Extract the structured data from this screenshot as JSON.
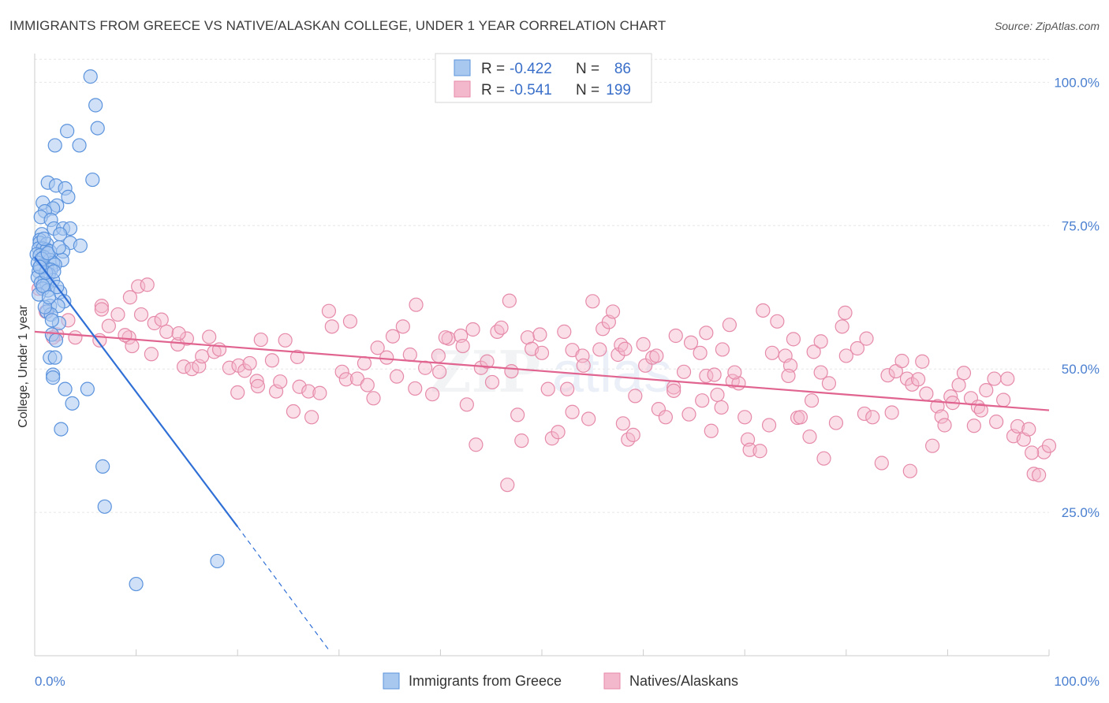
{
  "title": "IMMIGRANTS FROM GREECE VS NATIVE/ALASKAN COLLEGE, UNDER 1 YEAR CORRELATION CHART",
  "source": "Source: ZipAtlas.com",
  "watermark": "ZIPatlas",
  "colors": {
    "blue_fill": "#a9c8f0",
    "blue_stroke": "#5b93dd",
    "blue_line": "#2f6fd6",
    "pink_fill": "#f4b8cc",
    "pink_stroke": "#e68aa9",
    "pink_line": "#e0648f"
  },
  "legend_top": {
    "rows": [
      {
        "r_label": "R =",
        "r_value": "-0.422",
        "n_label": "N =",
        "n_value": "86"
      },
      {
        "r_label": "R =",
        "r_value": "-0.541",
        "n_label": "N =",
        "n_value": "199"
      }
    ]
  },
  "legend_bottom": {
    "items": [
      {
        "label": "Immigrants from Greece"
      },
      {
        "label": "Natives/Alaskans"
      }
    ]
  },
  "chart_data": {
    "type": "scatter",
    "title": "IMMIGRANTS FROM GREECE VS NATIVE/ALASKAN COLLEGE, UNDER 1 YEAR CORRELATION CHART",
    "xlabel": "",
    "ylabel": "College, Under 1 year",
    "xlim": [
      0,
      100
    ],
    "ylim": [
      0,
      105
    ],
    "x_tick_labels": [
      "0.0%",
      "100.0%"
    ],
    "y_ticks": [
      25,
      50,
      75,
      100
    ],
    "y_tick_labels": [
      "25.0%",
      "50.0%",
      "75.0%",
      "100.0%"
    ],
    "grid": true,
    "legend_position": "top-center",
    "series": [
      {
        "name": "Immigrants from Greece",
        "r": -0.422,
        "n": 86,
        "trend": {
          "x": [
            0,
            20
          ],
          "y": [
            69.5,
            22.5
          ],
          "dashed_to": [
            29,
            1
          ]
        },
        "points": [
          [
            5.5,
            101
          ],
          [
            6,
            96
          ],
          [
            6.2,
            92
          ],
          [
            3.2,
            91.5
          ],
          [
            2,
            89
          ],
          [
            4.4,
            89
          ],
          [
            5.7,
            83
          ],
          [
            1.3,
            82.5
          ],
          [
            2.1,
            82
          ],
          [
            3,
            81.5
          ],
          [
            3.3,
            80
          ],
          [
            0.8,
            79
          ],
          [
            2.2,
            78.5
          ],
          [
            1.8,
            78
          ],
          [
            1,
            77.5
          ],
          [
            0.6,
            76.5
          ],
          [
            1.6,
            76
          ],
          [
            1.9,
            74.5
          ],
          [
            2.8,
            74.5
          ],
          [
            3.5,
            74.5
          ],
          [
            0.7,
            73.5
          ],
          [
            2.5,
            73.5
          ],
          [
            0.5,
            72.5
          ],
          [
            0.5,
            72
          ],
          [
            1.2,
            71.8
          ],
          [
            3.5,
            72
          ],
          [
            4.5,
            71.5
          ],
          [
            0.4,
            71
          ],
          [
            0.8,
            71
          ],
          [
            1.2,
            70.8
          ],
          [
            1.5,
            70.5
          ],
          [
            2.8,
            70.5
          ],
          [
            0.2,
            70
          ],
          [
            0.5,
            69.8
          ],
          [
            0.9,
            69.5
          ],
          [
            1.5,
            69
          ],
          [
            2.7,
            69
          ],
          [
            0.3,
            68.5
          ],
          [
            1.8,
            68.5
          ],
          [
            2,
            68.2
          ],
          [
            0.6,
            68
          ],
          [
            1.2,
            67.5
          ],
          [
            1.6,
            67.3
          ],
          [
            0.4,
            67
          ],
          [
            1.4,
            66.5
          ],
          [
            0.3,
            66
          ],
          [
            1,
            65.5
          ],
          [
            1.8,
            65.5
          ],
          [
            0.6,
            65
          ],
          [
            1.2,
            64.8
          ],
          [
            0.8,
            64
          ],
          [
            1.3,
            63.7
          ],
          [
            2.5,
            63.4
          ],
          [
            0.4,
            63
          ],
          [
            2.9,
            61.8
          ],
          [
            1.5,
            61
          ],
          [
            2.3,
            61
          ],
          [
            1.2,
            60
          ],
          [
            1.6,
            59.5
          ],
          [
            2.4,
            58
          ],
          [
            1.7,
            56
          ],
          [
            1.5,
            52
          ],
          [
            2,
            52
          ],
          [
            1.8,
            49
          ],
          [
            1.8,
            48.5
          ],
          [
            3,
            46.5
          ],
          [
            5.2,
            46.5
          ],
          [
            3.7,
            44
          ],
          [
            2.6,
            39.5
          ],
          [
            6.7,
            33
          ],
          [
            6.9,
            26
          ],
          [
            18,
            16.5
          ],
          [
            10,
            12.5
          ],
          [
            0.8,
            64.5
          ],
          [
            1.1,
            66.8
          ],
          [
            0.7,
            69.2
          ],
          [
            1.9,
            67
          ],
          [
            2.2,
            64.3
          ],
          [
            0.5,
            67.8
          ],
          [
            1.3,
            70.2
          ],
          [
            0.9,
            72.7
          ],
          [
            2.4,
            71.2
          ],
          [
            1,
            60.8
          ],
          [
            1.7,
            58.5
          ],
          [
            2.1,
            55
          ],
          [
            1.4,
            62.5
          ]
        ]
      },
      {
        "name": "Natives/Alaskans",
        "r": -0.541,
        "n": 199,
        "trend": {
          "x": [
            0,
            100
          ],
          "y": [
            56.5,
            42.8
          ]
        },
        "points": [
          [
            0.4,
            64
          ],
          [
            1.1,
            60
          ],
          [
            3.3,
            58.5
          ],
          [
            2.2,
            56
          ],
          [
            6.4,
            55
          ],
          [
            1.8,
            55.5
          ],
          [
            4,
            55.5
          ],
          [
            6.6,
            61
          ],
          [
            8.2,
            59.5
          ],
          [
            9.3,
            55.5
          ],
          [
            7.3,
            57.5
          ],
          [
            9.6,
            54
          ],
          [
            11.5,
            52.6
          ],
          [
            9.4,
            62.5
          ],
          [
            10.2,
            64.4
          ],
          [
            11.1,
            64.7
          ],
          [
            10.5,
            59.5
          ],
          [
            11.8,
            58
          ],
          [
            13,
            56.5
          ],
          [
            14.1,
            54.3
          ],
          [
            15,
            55.3
          ],
          [
            14.2,
            56.2
          ],
          [
            14.7,
            50.4
          ],
          [
            15.5,
            50
          ],
          [
            16.2,
            50.5
          ],
          [
            16.5,
            52.2
          ],
          [
            17.2,
            55.6
          ],
          [
            17.7,
            53
          ],
          [
            18.2,
            53.4
          ],
          [
            19.2,
            50.2
          ],
          [
            20.1,
            50.6
          ],
          [
            20.7,
            49.7
          ],
          [
            21.2,
            51
          ],
          [
            20,
            45.9
          ],
          [
            21.9,
            47.9
          ],
          [
            22.3,
            55.1
          ],
          [
            23.4,
            51.5
          ],
          [
            23.8,
            46.1
          ],
          [
            24.2,
            47.8
          ],
          [
            24.7,
            55
          ],
          [
            25.5,
            42.6
          ],
          [
            25.9,
            52.1
          ],
          [
            26.1,
            46.9
          ],
          [
            27,
            46.1
          ],
          [
            27.3,
            41.6
          ],
          [
            28.1,
            45.8
          ],
          [
            29,
            60.1
          ],
          [
            29.3,
            57.4
          ],
          [
            30.3,
            49.5
          ],
          [
            30.7,
            48.2
          ],
          [
            31.1,
            58.3
          ],
          [
            31.8,
            48.3
          ],
          [
            32.5,
            51
          ],
          [
            32.8,
            47.2
          ],
          [
            33.8,
            53.7
          ],
          [
            34.7,
            52
          ],
          [
            35.3,
            55.7
          ],
          [
            35.7,
            48.7
          ],
          [
            36.3,
            57.4
          ],
          [
            37,
            52.5
          ],
          [
            37.6,
            61.2
          ],
          [
            37.5,
            46.6
          ],
          [
            38.5,
            50.2
          ],
          [
            39.2,
            45.6
          ],
          [
            39.8,
            52.3
          ],
          [
            39.9,
            49.5
          ],
          [
            40.8,
            55.3
          ],
          [
            40.5,
            55.5
          ],
          [
            42,
            55.8
          ],
          [
            42.2,
            54
          ],
          [
            42.6,
            43.8
          ],
          [
            43.2,
            56.9
          ],
          [
            44,
            50.2
          ],
          [
            44.6,
            51.3
          ],
          [
            45.1,
            47.7
          ],
          [
            45.6,
            56.5
          ],
          [
            46,
            57.2
          ],
          [
            46.8,
            61.9
          ],
          [
            47,
            49.6
          ],
          [
            47.6,
            42
          ],
          [
            48.6,
            55.5
          ],
          [
            49,
            53.5
          ],
          [
            49.8,
            56
          ],
          [
            50,
            52.8
          ],
          [
            50.6,
            46.5
          ],
          [
            51,
            37.9
          ],
          [
            51.6,
            39
          ],
          [
            52.2,
            56.5
          ],
          [
            52.5,
            46.5
          ],
          [
            53,
            42.5
          ],
          [
            53,
            53.3
          ],
          [
            54,
            52.3
          ],
          [
            54.1,
            50.6
          ],
          [
            54.6,
            41.3
          ],
          [
            55,
            61.8
          ],
          [
            56,
            57
          ],
          [
            56.6,
            58.2
          ],
          [
            57,
            60
          ],
          [
            57.5,
            52.5
          ],
          [
            57.8,
            54.2
          ],
          [
            58,
            40.5
          ],
          [
            58.2,
            53.5
          ],
          [
            58.5,
            37.7
          ],
          [
            59,
            38.5
          ],
          [
            59.2,
            45.3
          ],
          [
            60,
            54.3
          ],
          [
            60.2,
            50.6
          ],
          [
            60.9,
            52
          ],
          [
            61.3,
            52.3
          ],
          [
            61.5,
            43
          ],
          [
            62.2,
            41.6
          ],
          [
            63,
            46.8
          ],
          [
            63.2,
            55.8
          ],
          [
            64,
            49.5
          ],
          [
            64.5,
            42.1
          ],
          [
            64.7,
            54.6
          ],
          [
            65.6,
            52.8
          ],
          [
            66.2,
            48.8
          ],
          [
            66.2,
            56.3
          ],
          [
            66.7,
            39.2
          ],
          [
            67,
            49
          ],
          [
            67.3,
            45.5
          ],
          [
            67.7,
            43.3
          ],
          [
            67.8,
            53.4
          ],
          [
            68.5,
            57.7
          ],
          [
            68.8,
            47.9
          ],
          [
            69.4,
            47.5
          ],
          [
            70,
            41.6
          ],
          [
            70.3,
            37.7
          ],
          [
            70.5,
            35.9
          ],
          [
            71.5,
            35.7
          ],
          [
            71.8,
            60.2
          ],
          [
            72.4,
            40.2
          ],
          [
            72.7,
            52.8
          ],
          [
            73.2,
            58.3
          ],
          [
            74,
            52.3
          ],
          [
            74.5,
            50.6
          ],
          [
            74.3,
            48.8
          ],
          [
            74.8,
            55.2
          ],
          [
            75.2,
            41.5
          ],
          [
            75.5,
            41.6
          ],
          [
            76.6,
            44.5
          ],
          [
            76.8,
            53
          ],
          [
            77.5,
            54.8
          ],
          [
            77.5,
            49.4
          ],
          [
            77.8,
            34.4
          ],
          [
            78.3,
            47.5
          ],
          [
            79,
            40.6
          ],
          [
            79.9,
            59.8
          ],
          [
            79.6,
            57.4
          ],
          [
            80,
            52.3
          ],
          [
            81.1,
            53.6
          ],
          [
            81.8,
            42.2
          ],
          [
            82,
            55.3
          ],
          [
            82.6,
            41.6
          ],
          [
            83.5,
            33.6
          ],
          [
            84.1,
            48.9
          ],
          [
            84.5,
            42.4
          ],
          [
            84.9,
            49.6
          ],
          [
            85.5,
            51.4
          ],
          [
            86,
            48.3
          ],
          [
            86.5,
            47.3
          ],
          [
            87.1,
            48.2
          ],
          [
            87.5,
            51.3
          ],
          [
            87.9,
            45.7
          ],
          [
            88.5,
            36.6
          ],
          [
            89,
            43.5
          ],
          [
            89.4,
            41.7
          ],
          [
            89.7,
            40.2
          ],
          [
            90.3,
            45.2
          ],
          [
            90.5,
            44.1
          ],
          [
            91.1,
            47.2
          ],
          [
            91.6,
            49.3
          ],
          [
            92.3,
            44.9
          ],
          [
            93,
            43.4
          ],
          [
            93.3,
            42.8
          ],
          [
            93.8,
            46.3
          ],
          [
            94.6,
            48.3
          ],
          [
            94.8,
            40.8
          ],
          [
            95.5,
            44.6
          ],
          [
            95.9,
            48.3
          ],
          [
            96.5,
            38.3
          ],
          [
            96.9,
            40
          ],
          [
            97.5,
            37.7
          ],
          [
            98,
            39.5
          ],
          [
            98.5,
            31.7
          ],
          [
            99,
            31.5
          ],
          [
            99.5,
            35.5
          ],
          [
            100,
            36.6
          ],
          [
            6.6,
            60.4
          ],
          [
            8.9,
            55.9
          ],
          [
            12.5,
            58.6
          ],
          [
            33.4,
            44.9
          ],
          [
            43.5,
            36.8
          ],
          [
            46.6,
            29.8
          ],
          [
            48,
            37.5
          ],
          [
            55.7,
            53.4
          ],
          [
            63,
            46.2
          ],
          [
            65.8,
            44.5
          ],
          [
            69,
            49.4
          ],
          [
            76.4,
            38.2
          ],
          [
            86.3,
            32.2
          ],
          [
            92.6,
            40.1
          ],
          [
            98.3,
            35.4
          ],
          [
            22,
            47
          ]
        ]
      }
    ]
  }
}
